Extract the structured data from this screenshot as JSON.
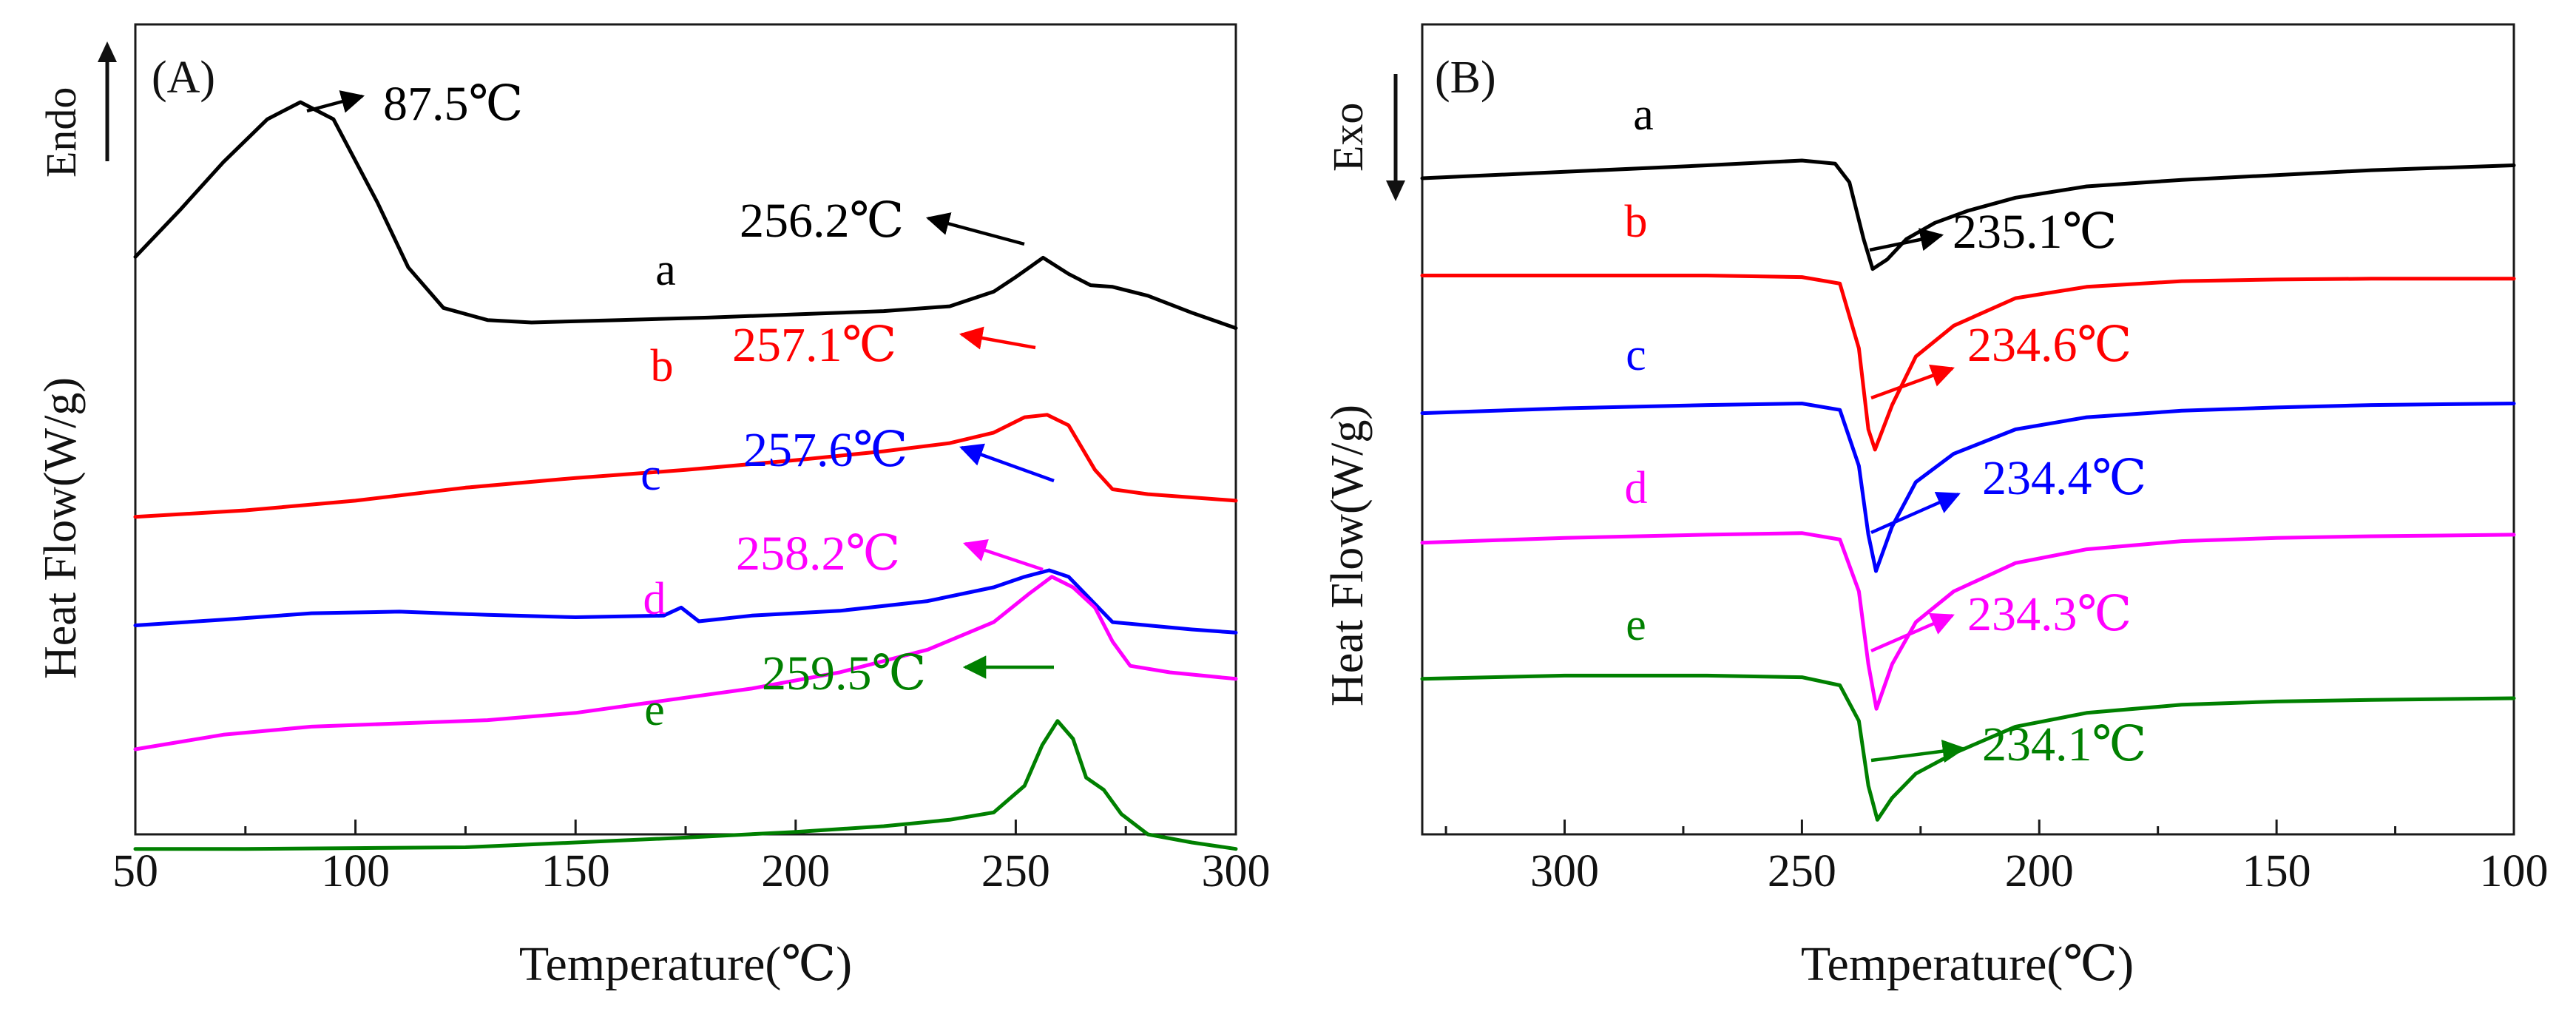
{
  "colors": {
    "a": "#000000",
    "b": "#ff0000",
    "c": "#0000ff",
    "d": "#ff00ff",
    "e": "#008000",
    "axes": "#1a1a1a"
  },
  "chart_data": [
    {
      "type": "line",
      "panel": "(A)",
      "xlabel": "Temperature(℃)",
      "ylabel": "Heat Flow(W/g)",
      "direction_label": "Endo",
      "direction_arrow": "up",
      "xlim": [
        50,
        300
      ],
      "xticks": [
        "50",
        "100",
        "150",
        "200",
        "250",
        "300"
      ],
      "yticks_shown": false,
      "series": [
        {
          "name": "a",
          "color": "#000000",
          "x": [
            50,
            60,
            70,
            80,
            87.5,
            95,
            105,
            112,
            120,
            130,
            140,
            160,
            180,
            200,
            220,
            235,
            245,
            250,
            256.2,
            262,
            267,
            272,
            280,
            290,
            300
          ],
          "y": [
            0.713,
            0.77,
            0.83,
            0.883,
            0.904,
            0.883,
            0.78,
            0.7,
            0.65,
            0.635,
            0.632,
            0.635,
            0.638,
            0.642,
            0.646,
            0.652,
            0.67,
            0.688,
            0.712,
            0.692,
            0.678,
            0.676,
            0.665,
            0.644,
            0.625
          ]
        },
        {
          "name": "b",
          "color": "#ff0000",
          "x": [
            50,
            75,
            100,
            125,
            150,
            175,
            200,
            220,
            235,
            245,
            252,
            257.1,
            262,
            268,
            272,
            280,
            290,
            300
          ],
          "y": [
            0.392,
            0.4,
            0.412,
            0.428,
            0.44,
            0.45,
            0.462,
            0.473,
            0.483,
            0.496,
            0.515,
            0.518,
            0.505,
            0.45,
            0.426,
            0.42,
            0.416,
            0.412
          ]
        },
        {
          "name": "c",
          "color": "#0000ff",
          "x": [
            50,
            70,
            90,
            110,
            130,
            150,
            170,
            174,
            178,
            190,
            210,
            230,
            245,
            252,
            257.6,
            262,
            267,
            272,
            280,
            290,
            300
          ],
          "y": [
            0.258,
            0.265,
            0.273,
            0.275,
            0.271,
            0.268,
            0.27,
            0.28,
            0.263,
            0.27,
            0.276,
            0.288,
            0.305,
            0.318,
            0.326,
            0.318,
            0.29,
            0.262,
            0.258,
            0.253,
            0.249
          ]
        },
        {
          "name": "d",
          "color": "#ff00ff",
          "x": [
            50,
            70,
            90,
            110,
            130,
            150,
            170,
            190,
            210,
            230,
            245,
            253,
            258.2,
            263,
            268,
            272,
            276,
            285,
            300
          ],
          "y": [
            0.105,
            0.123,
            0.133,
            0.137,
            0.141,
            0.15,
            0.165,
            0.18,
            0.2,
            0.228,
            0.262,
            0.297,
            0.318,
            0.305,
            0.28,
            0.238,
            0.208,
            0.2,
            0.192
          ]
        },
        {
          "name": "e",
          "color": "#008000",
          "x": [
            50,
            75,
            100,
            125,
            150,
            175,
            200,
            220,
            235,
            245,
            252,
            256,
            259.5,
            263,
            266,
            270,
            274,
            280,
            290,
            300
          ],
          "y": [
            -0.018,
            -0.018,
            -0.017,
            -0.016,
            -0.01,
            -0.004,
            0.003,
            0.01,
            0.018,
            0.027,
            0.06,
            0.11,
            0.14,
            0.118,
            0.07,
            0.055,
            0.025,
            0.0,
            -0.01,
            -0.018
          ]
        }
      ],
      "annotations": [
        {
          "text": "87.5℃",
          "color": "#000000",
          "peak_x": 87.5
        },
        {
          "text": "256.2℃",
          "color": "#000000",
          "peak_x": 256.2
        },
        {
          "text": "257.1℃",
          "color": "#ff0000",
          "peak_x": 257.1
        },
        {
          "text": "257.6℃",
          "color": "#0000ff",
          "peak_x": 257.6
        },
        {
          "text": "258.2℃",
          "color": "#ff00ff",
          "peak_x": 258.2
        },
        {
          "text": "259.5℃",
          "color": "#008000",
          "peak_x": 259.5
        }
      ]
    },
    {
      "type": "line",
      "panel": "(B)",
      "xlabel": "Temperature(℃)",
      "ylabel": "Heat Flow(W/g)",
      "direction_label": "Exo",
      "direction_arrow": "down",
      "xlim": [
        330,
        100
      ],
      "x_reversed": true,
      "xticks": [
        "300",
        "250",
        "200",
        "150",
        "100"
      ],
      "yticks_shown": false,
      "series": [
        {
          "name": "a",
          "color": "#000000",
          "x": [
            330,
            300,
            270,
            250,
            243,
            240,
            237,
            235.1,
            232,
            228,
            222,
            215,
            205,
            190,
            170,
            150,
            130,
            100
          ],
          "y": [
            0.81,
            0.818,
            0.826,
            0.832,
            0.828,
            0.805,
            0.735,
            0.698,
            0.71,
            0.735,
            0.755,
            0.77,
            0.786,
            0.8,
            0.808,
            0.814,
            0.82,
            0.826
          ]
        },
        {
          "name": "b",
          "color": "#ff0000",
          "x": [
            330,
            300,
            270,
            250,
            242,
            238,
            236,
            234.6,
            231,
            226,
            218,
            205,
            190,
            170,
            150,
            130,
            100
          ],
          "y": [
            0.69,
            0.69,
            0.69,
            0.688,
            0.68,
            0.6,
            0.5,
            0.475,
            0.53,
            0.59,
            0.628,
            0.662,
            0.676,
            0.683,
            0.685,
            0.686,
            0.686
          ]
        },
        {
          "name": "c",
          "color": "#0000ff",
          "x": [
            330,
            300,
            270,
            250,
            242,
            238,
            236,
            234.4,
            231,
            226,
            218,
            205,
            190,
            170,
            150,
            130,
            100
          ],
          "y": [
            0.52,
            0.526,
            0.53,
            0.532,
            0.524,
            0.455,
            0.37,
            0.325,
            0.38,
            0.435,
            0.47,
            0.5,
            0.515,
            0.523,
            0.527,
            0.53,
            0.532
          ]
        },
        {
          "name": "d",
          "color": "#ff00ff",
          "x": [
            330,
            300,
            270,
            250,
            242,
            238,
            236,
            234.3,
            231,
            226,
            218,
            205,
            190,
            170,
            150,
            130,
            100
          ],
          "y": [
            0.36,
            0.366,
            0.37,
            0.372,
            0.364,
            0.3,
            0.21,
            0.155,
            0.21,
            0.262,
            0.3,
            0.335,
            0.352,
            0.362,
            0.366,
            0.368,
            0.37
          ]
        },
        {
          "name": "e",
          "color": "#008000",
          "x": [
            330,
            300,
            270,
            250,
            242,
            238,
            236,
            234.1,
            231,
            226,
            218,
            205,
            190,
            170,
            150,
            130,
            100
          ],
          "y": [
            0.192,
            0.196,
            0.196,
            0.194,
            0.184,
            0.14,
            0.06,
            0.018,
            0.045,
            0.075,
            0.1,
            0.133,
            0.15,
            0.16,
            0.164,
            0.166,
            0.168
          ]
        }
      ],
      "annotations": [
        {
          "text": "235.1℃",
          "color": "#000000",
          "peak_x": 235.1
        },
        {
          "text": "234.6℃",
          "color": "#ff0000",
          "peak_x": 234.6
        },
        {
          "text": "234.4℃",
          "color": "#0000ff",
          "peak_x": 234.4
        },
        {
          "text": "234.3℃",
          "color": "#ff00ff",
          "peak_x": 234.3
        },
        {
          "text": "234.1℃",
          "color": "#008000",
          "peak_x": 234.1
        }
      ]
    }
  ]
}
